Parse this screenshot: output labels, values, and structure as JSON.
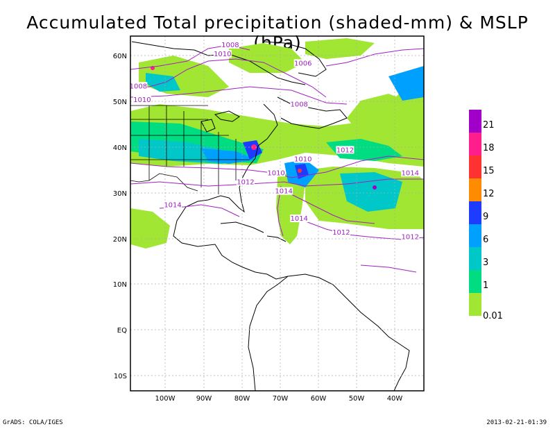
{
  "title": "Accumulated Total precipitation (shaded-mm) & MSLP (hPa)",
  "map": {
    "lat_labels": [
      "60N",
      "50N",
      "40N",
      "30N",
      "20N",
      "10N",
      "EQ",
      "10S"
    ],
    "lon_labels": [
      "100W",
      "90W",
      "80W",
      "70W",
      "60W",
      "50W",
      "40W"
    ]
  },
  "isobars": {
    "color": "#a020c0",
    "labels": [
      {
        "text": "1008",
        "lon": -83,
        "lat": 62
      },
      {
        "text": "1010",
        "lon": -85,
        "lat": 60
      },
      {
        "text": "1006",
        "lon": -64,
        "lat": 58
      },
      {
        "text": "1008",
        "lon": -107,
        "lat": 53
      },
      {
        "text": "1010",
        "lon": -106,
        "lat": 50
      },
      {
        "text": "1008",
        "lon": -65,
        "lat": 49
      },
      {
        "text": "1012",
        "lon": -53,
        "lat": 39
      },
      {
        "text": "1010",
        "lon": -64,
        "lat": 37
      },
      {
        "text": "1010",
        "lon": -71,
        "lat": 34
      },
      {
        "text": "1012",
        "lon": -79,
        "lat": 32
      },
      {
        "text": "1014",
        "lon": -36,
        "lat": 34
      },
      {
        "text": "1014",
        "lon": -69,
        "lat": 30
      },
      {
        "text": "1014",
        "lon": -98,
        "lat": 27
      },
      {
        "text": "1014",
        "lon": -65,
        "lat": 24
      },
      {
        "text": "1012",
        "lon": -54,
        "lat": 21
      },
      {
        "text": "1012",
        "lon": -36,
        "lat": 20
      }
    ]
  },
  "colorbar": {
    "labels": [
      "0.01",
      "1",
      "3",
      "6",
      "9",
      "12",
      "15",
      "18",
      "21"
    ],
    "colors": [
      "#a0e632",
      "#00dc82",
      "#00c8c8",
      "#00a0ff",
      "#1e3cff",
      "#ff8c00",
      "#ff3232",
      "#ff1e8c",
      "#a000c8"
    ]
  },
  "footer": {
    "left": "GrADS: COLA/IGES",
    "right": "2013-02-21-01:39"
  }
}
